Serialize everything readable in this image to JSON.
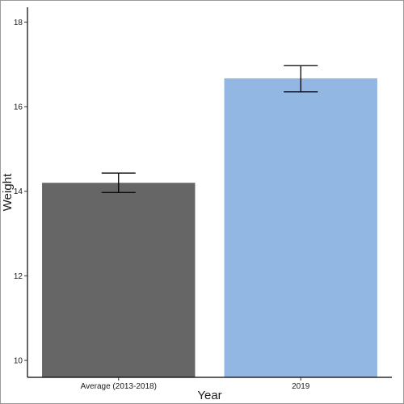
{
  "chart_data": {
    "type": "bar",
    "title": "",
    "xlabel": "Year",
    "ylabel": "Weight",
    "categories": [
      "Average (2013-2018)",
      "2019"
    ],
    "values": [
      14.2,
      16.67
    ],
    "error_low": [
      13.97,
      16.35
    ],
    "error_high": [
      14.43,
      16.97
    ],
    "bar_colors": [
      "#666666",
      "#92b7e3"
    ],
    "ylim": [
      9.6,
      18.35
    ],
    "yticks": [
      10,
      12,
      14,
      16,
      18
    ],
    "grid": false,
    "legend": "none"
  }
}
